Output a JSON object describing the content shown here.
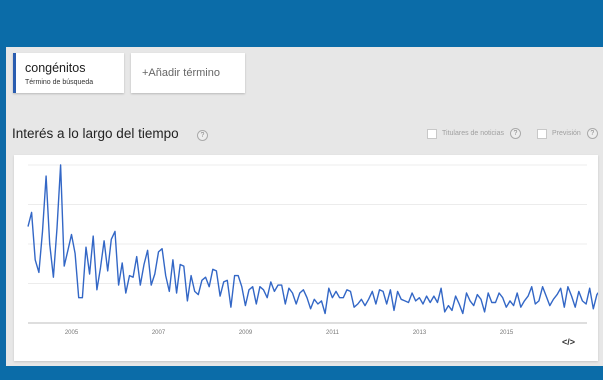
{
  "header": {
    "brand_color": "#0b6ca8"
  },
  "search_terms": [
    {
      "name": "congénitos",
      "subtitle": "Término de búsqueda",
      "color": "#2a5db0"
    }
  ],
  "add_term": {
    "label": "+Añadir término"
  },
  "section": {
    "title": "Interés a lo largo del tiempo",
    "help_glyph": "?",
    "options": [
      {
        "label": "Titulares de noticias",
        "checked": false
      },
      {
        "label": "Previsión",
        "checked": false
      }
    ]
  },
  "embed": {
    "label": "</>",
    "icon": "embed-code-icon"
  },
  "chart_data": {
    "type": "line",
    "title": "",
    "xlabel": "",
    "ylabel": "",
    "x_ticks": [
      "2005",
      "2007",
      "2009",
      "2011",
      "2013",
      "2015"
    ],
    "x_range": [
      2004.0,
      2016.85
    ],
    "ylim": [
      0,
      100
    ],
    "grid": true,
    "legend": "none",
    "line_color": "#3367c6",
    "series": [
      {
        "name": "congénitos",
        "start": 2004.0,
        "step": 0.0833,
        "values": [
          61,
          70,
          40,
          32,
          58,
          93,
          50,
          29,
          60,
          100,
          36,
          46,
          56,
          44,
          16,
          16,
          48,
          31,
          55,
          21,
          35,
          52,
          33,
          53,
          58,
          24,
          38,
          19,
          30,
          29,
          42,
          24,
          37,
          46,
          24,
          31,
          45,
          47,
          30,
          20,
          40,
          19,
          37,
          36,
          14,
          30,
          20,
          18,
          27,
          29,
          23,
          34,
          33,
          17,
          26,
          27,
          10,
          30,
          30,
          23,
          11,
          21,
          23,
          12,
          23,
          21,
          16,
          26,
          20,
          24,
          24,
          12,
          22,
          19,
          12,
          19,
          21,
          16,
          9,
          15,
          12,
          14,
          6,
          22,
          16,
          20,
          16,
          16,
          21,
          20,
          10,
          12,
          15,
          11,
          15,
          20,
          12,
          21,
          20,
          12,
          21,
          8,
          20,
          15,
          14,
          13,
          19,
          14,
          16,
          12,
          17,
          13,
          17,
          13,
          22,
          7,
          11,
          8,
          17,
          12,
          6,
          19,
          14,
          11,
          18,
          15,
          7,
          19,
          13,
          13,
          19,
          16,
          10,
          14,
          11,
          19,
          10,
          14,
          17,
          23,
          12,
          14,
          23,
          17,
          11,
          15,
          18,
          22,
          10,
          23,
          17,
          10,
          20,
          14,
          12,
          22,
          9,
          18,
          21,
          13,
          14,
          17,
          11,
          19,
          10,
          12,
          16,
          12,
          8,
          12,
          11,
          20,
          12,
          17,
          8,
          8,
          14,
          23,
          7,
          18,
          18,
          14,
          9,
          14,
          19,
          12,
          12,
          24,
          24,
          10
        ]
      }
    ]
  }
}
